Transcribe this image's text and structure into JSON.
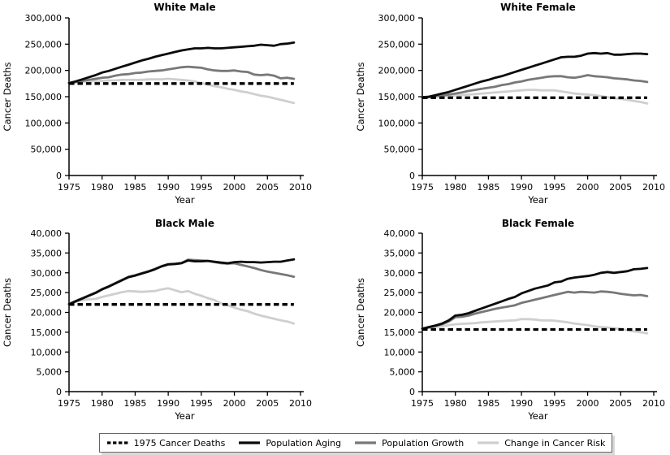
{
  "figure": {
    "xlabel": "Year",
    "ylabel": "Cancer Deaths"
  },
  "legend": {
    "items": [
      {
        "label": "1975 Cancer Deaths",
        "color": "#000000",
        "dashed": true
      },
      {
        "label": "Population Aging",
        "color": "#0a0a0a",
        "dashed": false
      },
      {
        "label": "Population Growth",
        "color": "#787878",
        "dashed": false
      },
      {
        "label": "Change in Cancer Risk",
        "color": "#cfcfcf",
        "dashed": false
      }
    ]
  },
  "chart_data": [
    {
      "type": "line",
      "title": "White Male",
      "xlabel": "Year",
      "ylabel": "Cancer Deaths",
      "x_start": 1975,
      "x_end": 2009,
      "xlim": [
        1975,
        2010
      ],
      "xticks": [
        1975,
        1980,
        1985,
        1990,
        1995,
        2000,
        2005,
        2010
      ],
      "ylim": [
        0,
        300000
      ],
      "ytick_step": 50000,
      "grid": false,
      "series": [
        {
          "name": "1975 Cancer Deaths",
          "style": "dashed",
          "color": "#000000",
          "constant": 175000
        },
        {
          "name": "Population Aging",
          "style": "solid",
          "color": "#0a0a0a",
          "values": [
            176000,
            179000,
            183000,
            187000,
            191000,
            196000,
            199000,
            203000,
            207000,
            211000,
            215000,
            219000,
            222000,
            226000,
            229000,
            232000,
            235000,
            238000,
            240000,
            242000,
            242000,
            243000,
            242000,
            242000,
            243000,
            244000,
            245000,
            246000,
            247000,
            249000,
            248000,
            247000,
            250000,
            251000,
            253000
          ]
        },
        {
          "name": "Population Growth",
          "style": "solid",
          "color": "#787878",
          "values": [
            176000,
            178000,
            180000,
            182000,
            184000,
            186000,
            187000,
            190000,
            192000,
            193000,
            195000,
            196000,
            198000,
            199000,
            200000,
            202000,
            204000,
            206000,
            207000,
            206000,
            205000,
            202000,
            200000,
            199000,
            199000,
            200000,
            198000,
            197000,
            192000,
            191000,
            192000,
            190000,
            185000,
            186000,
            184000
          ]
        },
        {
          "name": "Change in Cancer Risk",
          "style": "solid",
          "color": "#cfcfcf",
          "values": [
            176000,
            177000,
            178000,
            179000,
            180000,
            180000,
            181000,
            181000,
            182000,
            182000,
            182000,
            182000,
            183000,
            183000,
            183000,
            184000,
            183000,
            182000,
            181000,
            179000,
            176000,
            173000,
            170000,
            168000,
            165000,
            163000,
            160000,
            158000,
            155000,
            152000,
            150000,
            147000,
            144000,
            141000,
            138000
          ]
        }
      ]
    },
    {
      "type": "line",
      "title": "White Female",
      "xlabel": "Year",
      "ylabel": "Cancer Deaths",
      "x_start": 1975,
      "x_end": 2009,
      "xlim": [
        1975,
        2010
      ],
      "xticks": [
        1975,
        1980,
        1985,
        1990,
        1995,
        2000,
        2005,
        2010
      ],
      "ylim": [
        0,
        300000
      ],
      "ytick_step": 50000,
      "grid": false,
      "series": [
        {
          "name": "1975 Cancer Deaths",
          "style": "dashed",
          "color": "#000000",
          "constant": 148000
        },
        {
          "name": "Population Aging",
          "style": "solid",
          "color": "#0a0a0a",
          "values": [
            149000,
            150000,
            153000,
            156000,
            159000,
            163000,
            167000,
            171000,
            175000,
            179000,
            182000,
            186000,
            189000,
            193000,
            197000,
            201000,
            205000,
            209000,
            213000,
            217000,
            221000,
            225000,
            226000,
            226000,
            228000,
            232000,
            233000,
            232000,
            233000,
            230000,
            230000,
            231000,
            232000,
            232000,
            231000
          ]
        },
        {
          "name": "Population Growth",
          "style": "solid",
          "color": "#787878",
          "values": [
            149000,
            149000,
            151000,
            152000,
            154000,
            156000,
            158000,
            161000,
            163000,
            165000,
            167000,
            169000,
            172000,
            174000,
            177000,
            179000,
            182000,
            184000,
            186000,
            188000,
            189000,
            189000,
            187000,
            186000,
            188000,
            191000,
            189000,
            188000,
            187000,
            185000,
            184000,
            183000,
            181000,
            180000,
            178000
          ]
        },
        {
          "name": "Change in Cancer Risk",
          "style": "solid",
          "color": "#cfcfcf",
          "values": [
            149000,
            149000,
            150000,
            151000,
            151000,
            152000,
            153000,
            154000,
            155000,
            156000,
            157000,
            158000,
            159000,
            160000,
            161000,
            162000,
            163000,
            163000,
            162000,
            162000,
            162000,
            160000,
            158000,
            156000,
            155000,
            154000,
            153000,
            151000,
            149000,
            147000,
            146000,
            144000,
            142000,
            140000,
            137000
          ]
        }
      ]
    },
    {
      "type": "line",
      "title": "Black Male",
      "xlabel": "Year",
      "ylabel": "Cancer Deaths",
      "x_start": 1975,
      "x_end": 2009,
      "xlim": [
        1975,
        2010
      ],
      "xticks": [
        1975,
        1980,
        1985,
        1990,
        1995,
        2000,
        2005,
        2010
      ],
      "ylim": [
        0,
        40000
      ],
      "ytick_step": 5000,
      "grid": false,
      "series": [
        {
          "name": "1975 Cancer Deaths",
          "style": "dashed",
          "color": "#000000",
          "constant": 22000
        },
        {
          "name": "Population Aging",
          "style": "solid",
          "color": "#0a0a0a",
          "values": [
            22100,
            22800,
            23500,
            24200,
            24900,
            25800,
            26500,
            27300,
            28100,
            28900,
            29300,
            29800,
            30300,
            30900,
            31600,
            32100,
            32200,
            32400,
            33100,
            32900,
            32900,
            33000,
            32800,
            32600,
            32400,
            32700,
            32800,
            32700,
            32700,
            32600,
            32700,
            32800,
            32800,
            33100,
            33400
          ]
        },
        {
          "name": "Population Growth",
          "style": "solid",
          "color": "#787878",
          "values": [
            22100,
            22900,
            23600,
            24300,
            25000,
            25900,
            26600,
            27400,
            28200,
            29000,
            29400,
            29900,
            30400,
            31000,
            31700,
            32200,
            32300,
            32500,
            33300,
            33200,
            33100,
            33000,
            32700,
            32400,
            32300,
            32400,
            32000,
            31600,
            31200,
            30700,
            30300,
            30000,
            29700,
            29400,
            29000
          ]
        },
        {
          "name": "Change in Cancer Risk",
          "style": "solid",
          "color": "#cfcfcf",
          "values": [
            22100,
            22700,
            23100,
            23300,
            23400,
            23900,
            24300,
            24700,
            25100,
            25400,
            25300,
            25200,
            25300,
            25400,
            25800,
            26100,
            25600,
            25100,
            25400,
            24700,
            24200,
            23600,
            23100,
            22300,
            21800,
            21200,
            20700,
            20300,
            19700,
            19200,
            18800,
            18400,
            18000,
            17700,
            17200
          ]
        }
      ]
    },
    {
      "type": "line",
      "title": "Black Female",
      "xlabel": "Year",
      "ylabel": "Cancer Deaths",
      "x_start": 1975,
      "x_end": 2009,
      "xlim": [
        1975,
        2010
      ],
      "xticks": [
        1975,
        1980,
        1985,
        1990,
        1995,
        2000,
        2005,
        2010
      ],
      "ylim": [
        0,
        40000
      ],
      "ytick_step": 5000,
      "grid": false,
      "series": [
        {
          "name": "1975 Cancer Deaths",
          "style": "dashed",
          "color": "#000000",
          "constant": 15700
        },
        {
          "name": "Population Aging",
          "style": "solid",
          "color": "#0a0a0a",
          "values": [
            15900,
            16300,
            16700,
            17200,
            18000,
            19200,
            19400,
            19800,
            20400,
            21000,
            21600,
            22200,
            22800,
            23400,
            23900,
            24800,
            25400,
            26000,
            26400,
            26800,
            27600,
            27800,
            28500,
            28800,
            29000,
            29200,
            29500,
            30000,
            30200,
            30000,
            30200,
            30400,
            30900,
            31000,
            31200
          ]
        },
        {
          "name": "Population Growth",
          "style": "solid",
          "color": "#787878",
          "values": [
            15900,
            16200,
            16600,
            17000,
            17700,
            18800,
            18900,
            19200,
            19700,
            20100,
            20500,
            20900,
            21200,
            21500,
            21800,
            22400,
            22800,
            23200,
            23600,
            24000,
            24400,
            24800,
            25200,
            25000,
            25200,
            25100,
            25000,
            25300,
            25200,
            25000,
            24700,
            24500,
            24300,
            24400,
            24100
          ]
        },
        {
          "name": "Change in Cancer Risk",
          "style": "solid",
          "color": "#cfcfcf",
          "values": [
            15900,
            16100,
            16300,
            16500,
            16800,
            17000,
            17100,
            17200,
            17300,
            17500,
            17600,
            17700,
            17800,
            17900,
            18000,
            18300,
            18300,
            18200,
            18000,
            18000,
            17900,
            17700,
            17500,
            17200,
            17000,
            16800,
            16500,
            16300,
            16200,
            16000,
            15800,
            15500,
            15200,
            15000,
            14700
          ]
        }
      ]
    }
  ]
}
